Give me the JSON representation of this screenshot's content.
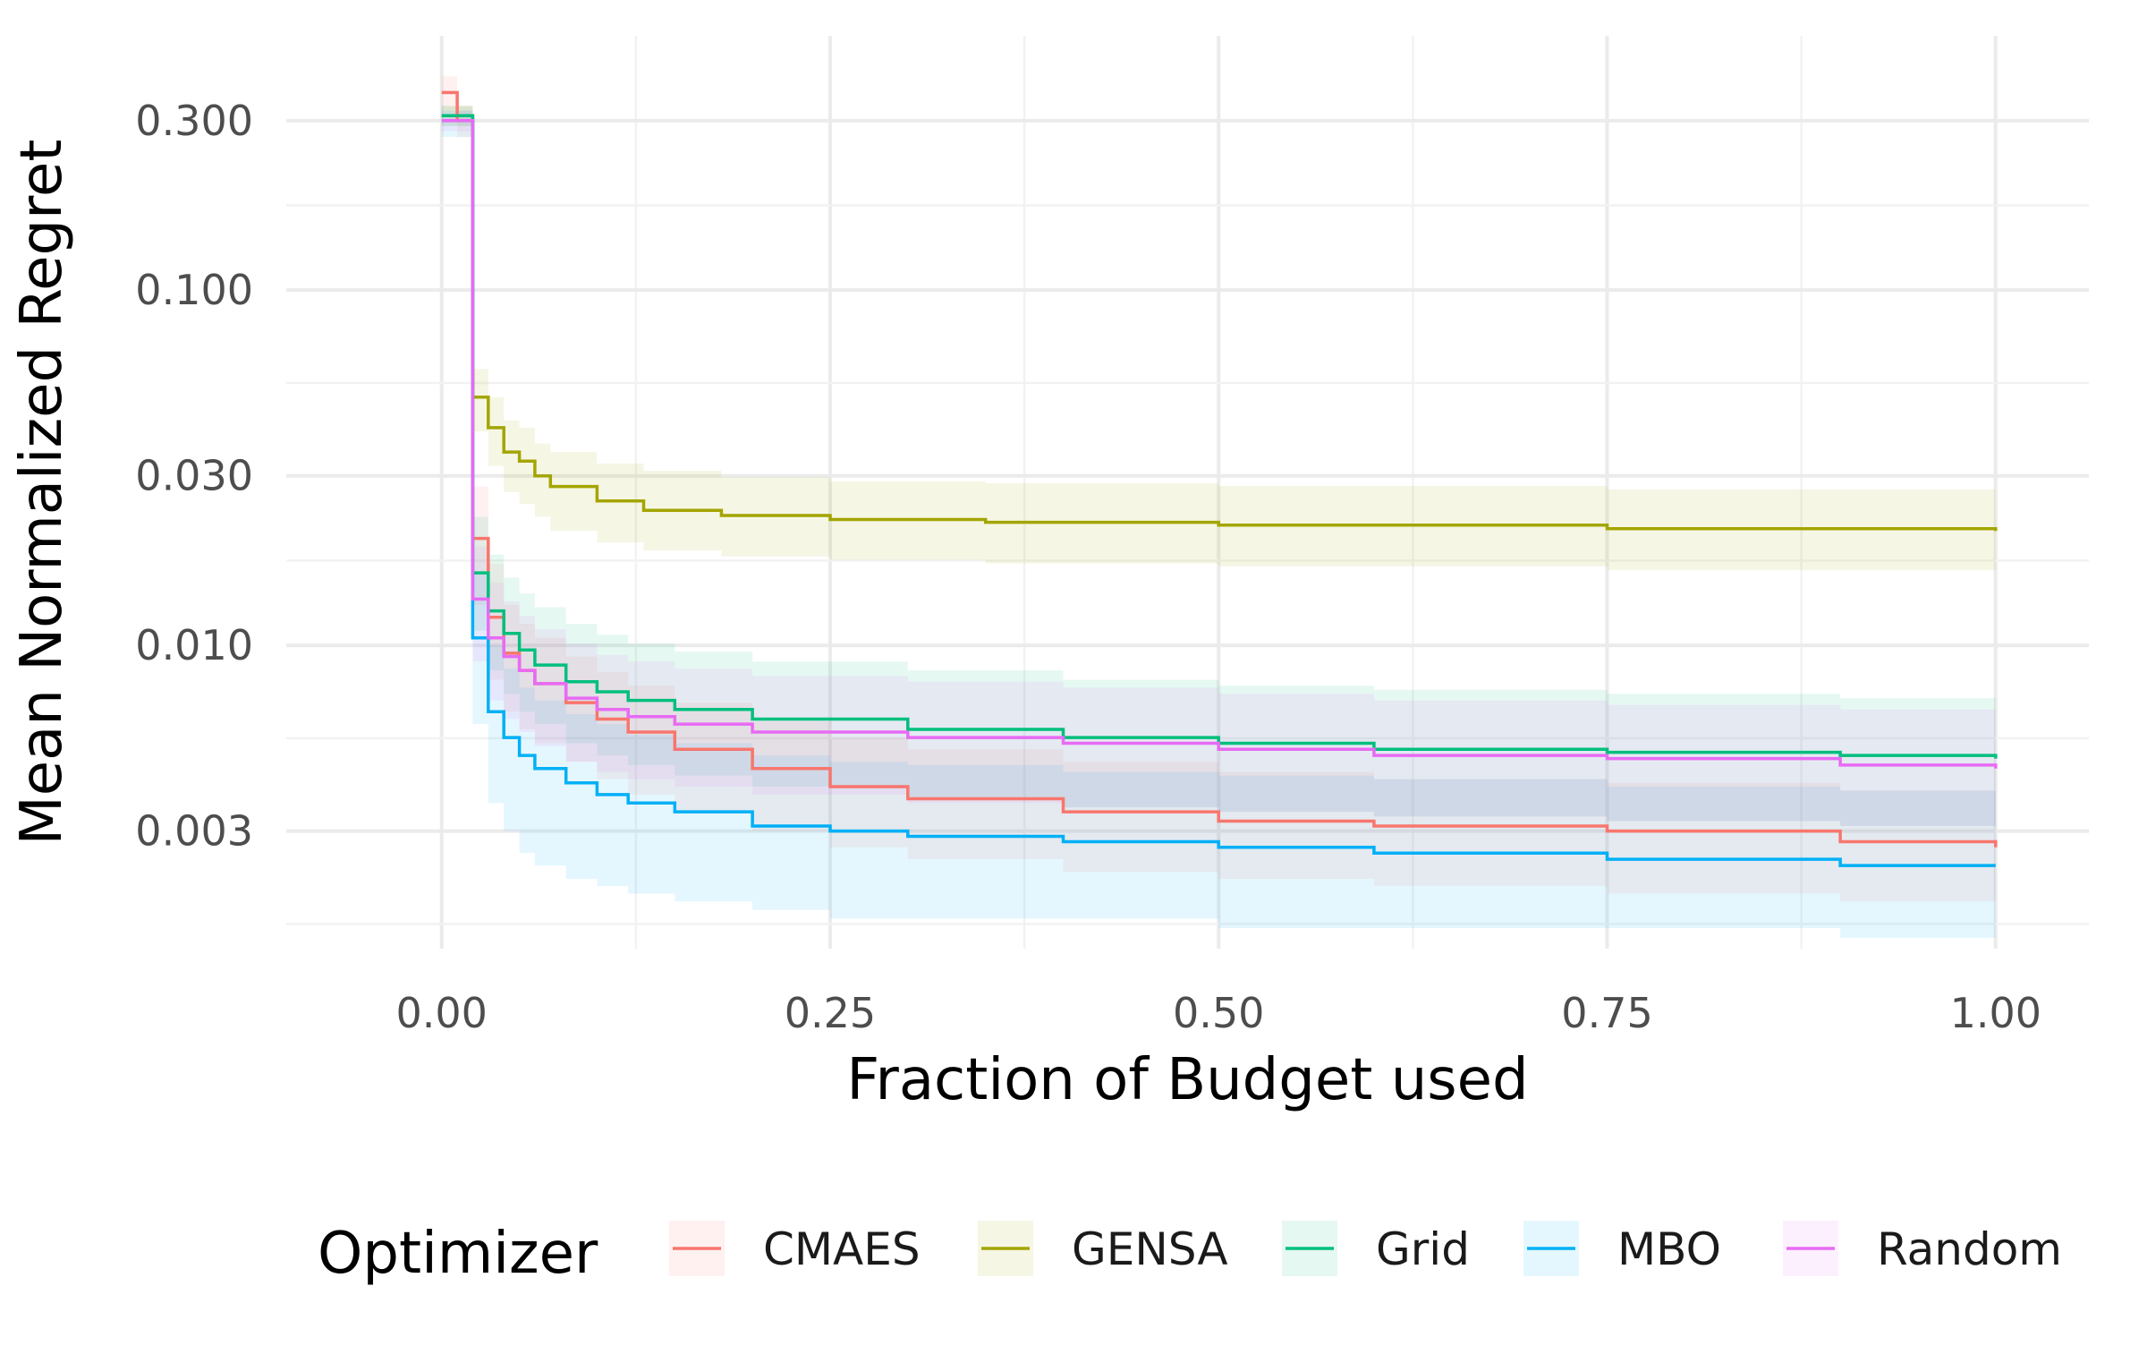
{
  "chart_data": {
    "type": "line",
    "step": true,
    "xlabel": "Fraction of Budget used",
    "ylabel": "Mean Normalized Regret",
    "xlim": [
      -0.1,
      1.06
    ],
    "ylim": [
      0.0014,
      0.52
    ],
    "yscale": "log",
    "grid": true,
    "x_ticks": [
      0.0,
      0.25,
      0.5,
      0.75,
      1.0
    ],
    "x_tick_labels": [
      "0.00",
      "0.25",
      "0.50",
      "0.75",
      "1.00"
    ],
    "y_ticks": [
      0.003,
      0.01,
      0.03,
      0.1,
      0.3
    ],
    "y_tick_labels": [
      "0.003",
      "0.010",
      "0.030",
      "0.100",
      "0.300"
    ],
    "legend": {
      "title": "Optimizer",
      "position": "bottom"
    },
    "series": [
      {
        "name": "CMAES",
        "color": "#F8766D",
        "x": [
          0.0,
          0.01,
          0.02,
          0.03,
          0.04,
          0.05,
          0.06,
          0.08,
          0.1,
          0.12,
          0.15,
          0.2,
          0.25,
          0.3,
          0.4,
          0.5,
          0.6,
          0.75,
          0.9,
          1.0
        ],
        "y": [
          0.36,
          0.3,
          0.02,
          0.012,
          0.0095,
          0.0085,
          0.0078,
          0.0069,
          0.0062,
          0.0057,
          0.0051,
          0.0045,
          0.004,
          0.0037,
          0.0034,
          0.0032,
          0.0031,
          0.003,
          0.0028,
          0.0027
        ],
        "lower": [
          0.32,
          0.27,
          0.013,
          0.008,
          0.0065,
          0.0058,
          0.0053,
          0.0047,
          0.0042,
          0.0038,
          0.0034,
          0.003,
          0.0027,
          0.0025,
          0.0023,
          0.0022,
          0.0021,
          0.002,
          0.0019,
          0.0018
        ],
        "upper": [
          0.4,
          0.33,
          0.028,
          0.017,
          0.013,
          0.0115,
          0.0105,
          0.0093,
          0.0084,
          0.0077,
          0.0069,
          0.0061,
          0.0055,
          0.0051,
          0.0047,
          0.0044,
          0.0042,
          0.0041,
          0.0039,
          0.0038
        ]
      },
      {
        "name": "GENSA",
        "color": "#A3A500",
        "x": [
          0.0,
          0.01,
          0.02,
          0.03,
          0.04,
          0.05,
          0.06,
          0.07,
          0.1,
          0.13,
          0.18,
          0.25,
          0.35,
          0.5,
          0.75,
          1.0
        ],
        "y": [
          0.31,
          0.31,
          0.05,
          0.041,
          0.035,
          0.033,
          0.03,
          0.028,
          0.0255,
          0.024,
          0.0232,
          0.0226,
          0.0222,
          0.0218,
          0.0213,
          0.021
        ],
        "lower": [
          0.29,
          0.29,
          0.04,
          0.032,
          0.027,
          0.025,
          0.023,
          0.021,
          0.0195,
          0.0185,
          0.0178,
          0.0174,
          0.017,
          0.0167,
          0.0163,
          0.016
        ],
        "upper": [
          0.33,
          0.33,
          0.06,
          0.05,
          0.043,
          0.041,
          0.037,
          0.035,
          0.0325,
          0.031,
          0.0298,
          0.029,
          0.0286,
          0.0281,
          0.0275,
          0.027
        ]
      },
      {
        "name": "Grid",
        "color": "#00BF7D",
        "x": [
          0.0,
          0.01,
          0.02,
          0.03,
          0.04,
          0.05,
          0.06,
          0.08,
          0.1,
          0.12,
          0.15,
          0.2,
          0.3,
          0.4,
          0.5,
          0.6,
          0.75,
          0.9,
          1.0
        ],
        "y": [
          0.31,
          0.31,
          0.016,
          0.0125,
          0.0108,
          0.0097,
          0.0088,
          0.0079,
          0.0074,
          0.007,
          0.0066,
          0.0062,
          0.0058,
          0.0055,
          0.0053,
          0.0051,
          0.005,
          0.0049,
          0.0048
        ],
        "lower": [
          0.29,
          0.29,
          0.011,
          0.0085,
          0.0073,
          0.0065,
          0.006,
          0.0053,
          0.0049,
          0.0046,
          0.0043,
          0.004,
          0.0037,
          0.0035,
          0.0034,
          0.0033,
          0.0032,
          0.0031,
          0.003
        ],
        "upper": [
          0.33,
          0.33,
          0.023,
          0.018,
          0.0155,
          0.014,
          0.0128,
          0.0115,
          0.0107,
          0.0101,
          0.0096,
          0.009,
          0.0085,
          0.008,
          0.0077,
          0.0075,
          0.0073,
          0.0071,
          0.007
        ]
      },
      {
        "name": "MBO",
        "color": "#00B0F6",
        "x": [
          0.0,
          0.01,
          0.02,
          0.03,
          0.04,
          0.05,
          0.06,
          0.08,
          0.1,
          0.12,
          0.15,
          0.2,
          0.25,
          0.3,
          0.4,
          0.5,
          0.6,
          0.75,
          0.9,
          1.0
        ],
        "y": [
          0.3,
          0.3,
          0.0105,
          0.0065,
          0.0055,
          0.0049,
          0.0045,
          0.0041,
          0.0038,
          0.0036,
          0.0034,
          0.0031,
          0.003,
          0.0029,
          0.0028,
          0.0027,
          0.0026,
          0.0025,
          0.0024,
          0.0024
        ],
        "lower": [
          0.27,
          0.27,
          0.006,
          0.0036,
          0.003,
          0.0026,
          0.0024,
          0.0022,
          0.0021,
          0.002,
          0.0019,
          0.0018,
          0.0017,
          0.0017,
          0.0017,
          0.0016,
          0.0016,
          0.0016,
          0.0015,
          0.0015
        ],
        "upper": [
          0.32,
          0.32,
          0.016,
          0.01,
          0.0086,
          0.0076,
          0.007,
          0.0064,
          0.006,
          0.0056,
          0.0053,
          0.0049,
          0.0047,
          0.0046,
          0.0044,
          0.0043,
          0.0042,
          0.004,
          0.0039,
          0.0038
        ]
      },
      {
        "name": "Random",
        "color": "#E76BF3",
        "x": [
          0.0,
          0.01,
          0.02,
          0.03,
          0.04,
          0.05,
          0.06,
          0.08,
          0.1,
          0.12,
          0.15,
          0.2,
          0.3,
          0.4,
          0.5,
          0.6,
          0.75,
          0.9,
          1.0
        ],
        "y": [
          0.3,
          0.3,
          0.0135,
          0.0105,
          0.0093,
          0.0085,
          0.0078,
          0.0071,
          0.0066,
          0.0063,
          0.006,
          0.0057,
          0.0055,
          0.0053,
          0.0051,
          0.0049,
          0.0048,
          0.0046,
          0.0045
        ],
        "lower": [
          0.28,
          0.28,
          0.009,
          0.007,
          0.0062,
          0.0057,
          0.0052,
          0.0047,
          0.0044,
          0.0042,
          0.004,
          0.0038,
          0.0036,
          0.0035,
          0.0034,
          0.0033,
          0.0032,
          0.0031,
          0.003
        ],
        "upper": [
          0.32,
          0.32,
          0.019,
          0.015,
          0.0133,
          0.0121,
          0.0111,
          0.0101,
          0.0094,
          0.009,
          0.0086,
          0.0082,
          0.0079,
          0.0076,
          0.0073,
          0.007,
          0.0068,
          0.0066,
          0.0065
        ]
      }
    ]
  }
}
